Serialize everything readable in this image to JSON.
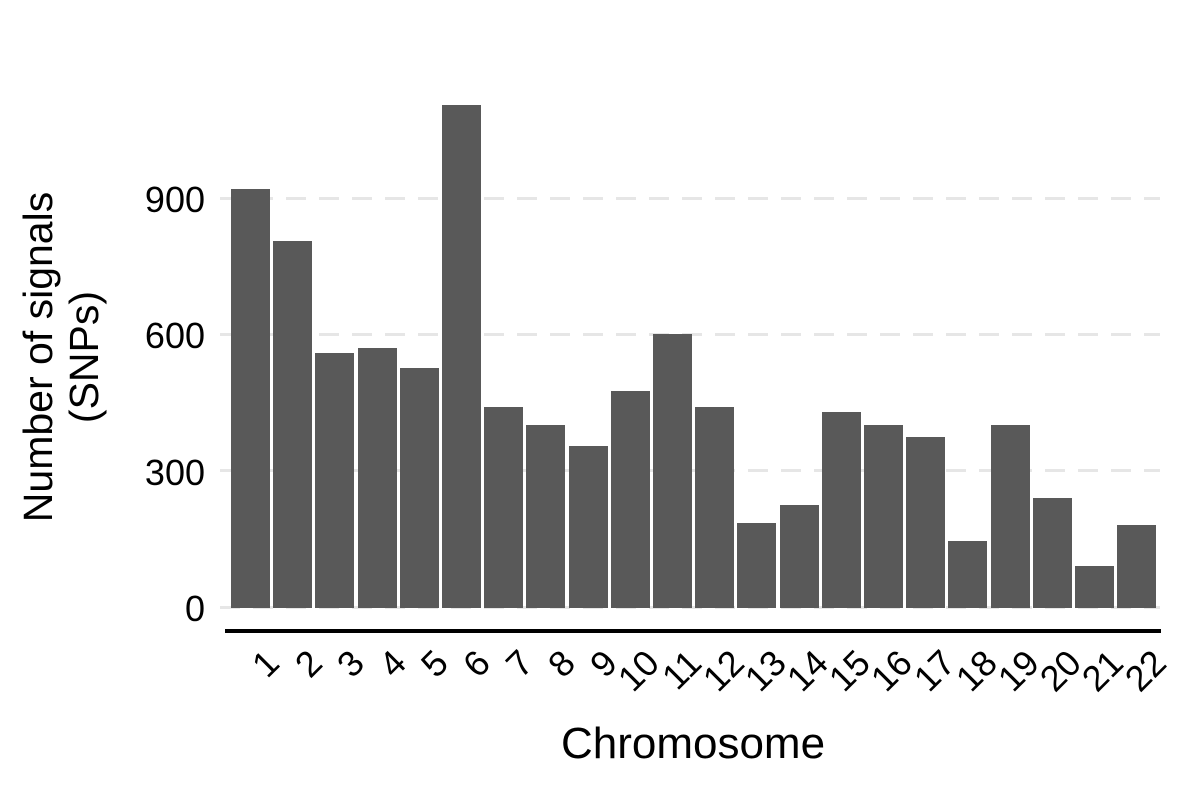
{
  "chart_data": {
    "type": "bar",
    "title": "",
    "xlabel": "Chromosome",
    "ylabel_line1": "Number of signals",
    "ylabel_line2": "(SNPs)",
    "categories": [
      "1",
      "2",
      "3",
      "4",
      "5",
      "6",
      "7",
      "8",
      "9",
      "10",
      "11",
      "12",
      "13",
      "14",
      "15",
      "16",
      "17",
      "18",
      "19",
      "20",
      "21",
      "22"
    ],
    "values": [
      920,
      805,
      560,
      570,
      525,
      1105,
      440,
      400,
      355,
      475,
      600,
      440,
      185,
      225,
      430,
      400,
      375,
      145,
      400,
      240,
      90,
      180
    ],
    "yticks": [
      0,
      300,
      600,
      900
    ],
    "ylim": [
      0,
      1150
    ],
    "grid": "horizontal-dashed",
    "legend_position": "none",
    "colors": {
      "bar": "#595959",
      "gridline": "#e6e6e6",
      "axis_line": "#000000",
      "text": "#000000",
      "background": "#ffffff"
    }
  }
}
